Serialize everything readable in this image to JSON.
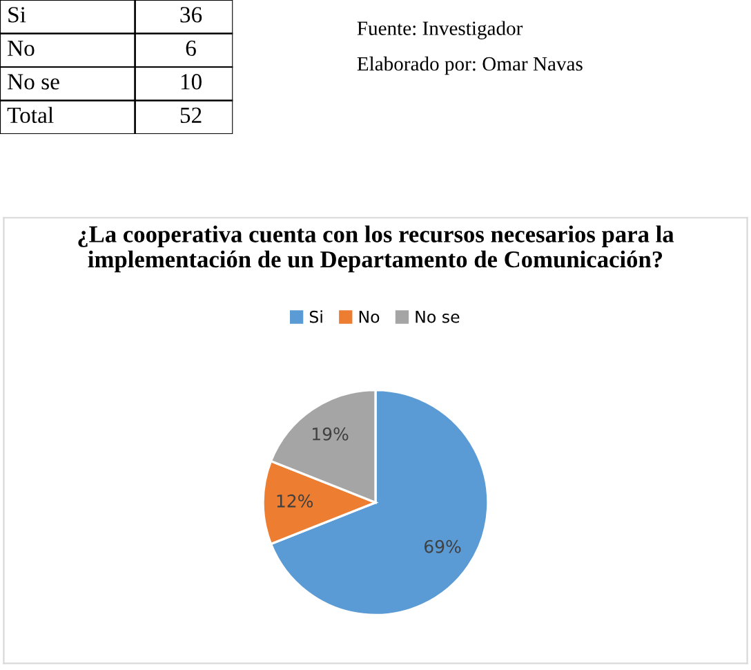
{
  "chart_data": [
    {
      "type": "other",
      "categories": [
        "Si",
        "No",
        "No se",
        "Total"
      ],
      "values": [
        36,
        6,
        10,
        52
      ],
      "data_labels": true,
      "annotations": [
        "Fuente: Investigador",
        "Elaborado por: Omar Navas"
      ]
    },
    {
      "type": "pie",
      "title": "¿La cooperativa cuenta con los recursos necesarios para la implementación de un Departamento de Comunicación?",
      "categories": [
        "Si",
        "No",
        "No se"
      ],
      "values": [
        69,
        12,
        19
      ],
      "colors": [
        "#5b9bd5",
        "#ed7d31",
        "#a5a5a5"
      ],
      "value_labels": [
        "69%",
        "12%",
        "19%"
      ],
      "legend": "top"
    }
  ]
}
